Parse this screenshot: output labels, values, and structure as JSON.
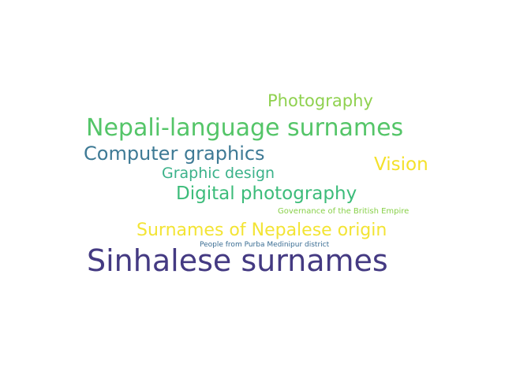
{
  "words": [
    {
      "text": "Photography",
      "color": "#8fd14f"
    },
    {
      "text": "Nepali-language surnames",
      "color": "#54c568"
    },
    {
      "text": "Computer graphics",
      "color": "#3e7a95"
    },
    {
      "text": "Vision",
      "color": "#f4e12a"
    },
    {
      "text": "Graphic design",
      "color": "#3bb28a"
    },
    {
      "text": "Digital photography",
      "color": "#3cbc7a"
    },
    {
      "text": "Governance of the British Empire",
      "color": "#88d049"
    },
    {
      "text": "Surnames of Nepalese origin",
      "color": "#f3e434"
    },
    {
      "text": "People from Purba Medinipur district",
      "color": "#3a6d93"
    },
    {
      "text": "Sinhalese surnames",
      "color": "#443a82"
    }
  ]
}
